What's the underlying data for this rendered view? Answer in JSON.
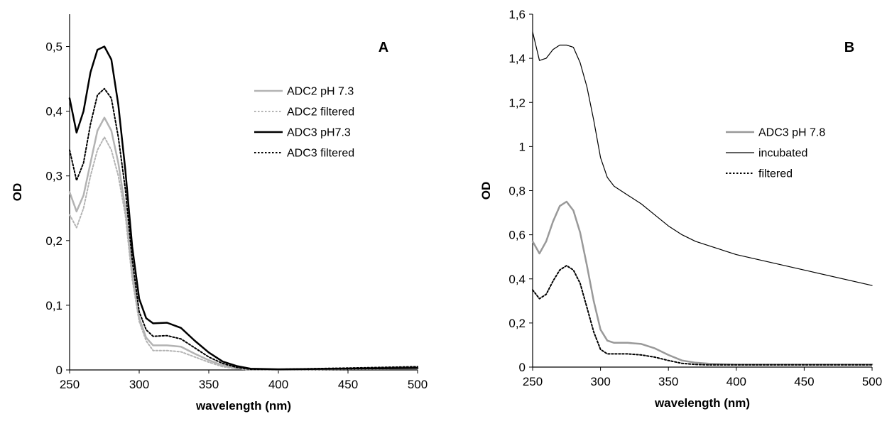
{
  "chart_data": [
    {
      "type": "line",
      "panel_label": "A",
      "xlabel": "wavelength (nm)",
      "ylabel": "OD",
      "xlim": [
        250,
        500
      ],
      "ylim": [
        0,
        0.55
      ],
      "xticks": [
        250,
        300,
        350,
        400,
        450,
        500
      ],
      "xtick_labels": [
        "250",
        "300",
        "350",
        "400",
        "450",
        "500"
      ],
      "yticks": [
        0,
        0.1,
        0.2,
        0.3,
        0.4,
        0.5
      ],
      "ytick_labels": [
        "0",
        "0,1",
        "0,2",
        "0,3",
        "0,4",
        "0,5"
      ],
      "grid": false,
      "legend_position": "right-middle",
      "x": [
        250,
        255,
        260,
        265,
        270,
        275,
        280,
        285,
        290,
        295,
        300,
        305,
        310,
        320,
        330,
        340,
        350,
        360,
        370,
        380,
        400,
        450,
        500
      ],
      "series": [
        {
          "name": "ADC2 pH 7.3",
          "color": "#b3b3b3",
          "dash": "solid",
          "width": 2.5,
          "values": [
            0.275,
            0.245,
            0.27,
            0.32,
            0.37,
            0.39,
            0.37,
            0.32,
            0.25,
            0.15,
            0.08,
            0.05,
            0.038,
            0.038,
            0.036,
            0.025,
            0.015,
            0.007,
            0.003,
            0.001,
            0.001,
            0.002,
            0.002
          ]
        },
        {
          "name": "ADC2 filtered",
          "color": "#b3b3b3",
          "dash": "dotted",
          "width": 2,
          "values": [
            0.24,
            0.22,
            0.25,
            0.3,
            0.34,
            0.36,
            0.34,
            0.3,
            0.24,
            0.14,
            0.075,
            0.045,
            0.03,
            0.03,
            0.028,
            0.02,
            0.012,
            0.005,
            0.002,
            0.0,
            0.0,
            0.001,
            0.002
          ]
        },
        {
          "name": "ADC3 pH7.3",
          "color": "#000000",
          "dash": "solid",
          "width": 2.5,
          "values": [
            0.42,
            0.367,
            0.4,
            0.46,
            0.495,
            0.5,
            0.48,
            0.41,
            0.31,
            0.19,
            0.11,
            0.08,
            0.072,
            0.073,
            0.065,
            0.045,
            0.027,
            0.013,
            0.006,
            0.002,
            0.001,
            0.002,
            0.003
          ]
        },
        {
          "name": "ADC3 filtered",
          "color": "#000000",
          "dash": "dotted",
          "width": 2,
          "values": [
            0.34,
            0.293,
            0.32,
            0.38,
            0.425,
            0.435,
            0.42,
            0.36,
            0.28,
            0.17,
            0.09,
            0.062,
            0.052,
            0.053,
            0.048,
            0.034,
            0.02,
            0.01,
            0.004,
            0.001,
            0.001,
            0.003,
            0.005
          ]
        }
      ]
    },
    {
      "type": "line",
      "panel_label": "B",
      "xlabel": "wavelength (nm)",
      "ylabel": "OD",
      "xlim": [
        250,
        500
      ],
      "ylim": [
        0,
        1.6
      ],
      "xticks": [
        250,
        300,
        350,
        400,
        450,
        500
      ],
      "xtick_labels": [
        "250",
        "300",
        "350",
        "400",
        "450",
        "500"
      ],
      "yticks": [
        0,
        0.2,
        0.4,
        0.6,
        0.8,
        1.0,
        1.2,
        1.4,
        1.6
      ],
      "ytick_labels": [
        "0",
        "0,2",
        "0,4",
        "0,6",
        "0,8",
        "1",
        "1,2",
        "1,4",
        "1,6"
      ],
      "grid": false,
      "legend_position": "right-middle",
      "x": [
        250,
        255,
        260,
        265,
        270,
        275,
        280,
        285,
        290,
        295,
        300,
        305,
        310,
        320,
        330,
        340,
        350,
        360,
        370,
        380,
        400,
        450,
        500
      ],
      "series": [
        {
          "name": "ADC3 pH 7.8",
          "color": "#999999",
          "dash": "solid",
          "width": 2.5,
          "values": [
            0.57,
            0.515,
            0.57,
            0.66,
            0.73,
            0.75,
            0.71,
            0.61,
            0.46,
            0.3,
            0.17,
            0.12,
            0.11,
            0.11,
            0.105,
            0.085,
            0.055,
            0.03,
            0.02,
            0.015,
            0.012,
            0.012,
            0.012
          ]
        },
        {
          "name": "incubated",
          "color": "#000000",
          "dash": "solid",
          "width": 1.2,
          "values": [
            1.52,
            1.39,
            1.4,
            1.44,
            1.46,
            1.46,
            1.45,
            1.38,
            1.27,
            1.12,
            0.95,
            0.86,
            0.82,
            0.78,
            0.74,
            0.69,
            0.64,
            0.6,
            0.57,
            0.55,
            0.51,
            0.44,
            0.37
          ]
        },
        {
          "name": "filtered",
          "color": "#000000",
          "dash": "dotted",
          "width": 2,
          "values": [
            0.35,
            0.31,
            0.33,
            0.39,
            0.44,
            0.46,
            0.44,
            0.38,
            0.27,
            0.16,
            0.08,
            0.06,
            0.06,
            0.06,
            0.055,
            0.045,
            0.03,
            0.017,
            0.012,
            0.01,
            0.01,
            0.01,
            0.01
          ]
        }
      ]
    }
  ]
}
